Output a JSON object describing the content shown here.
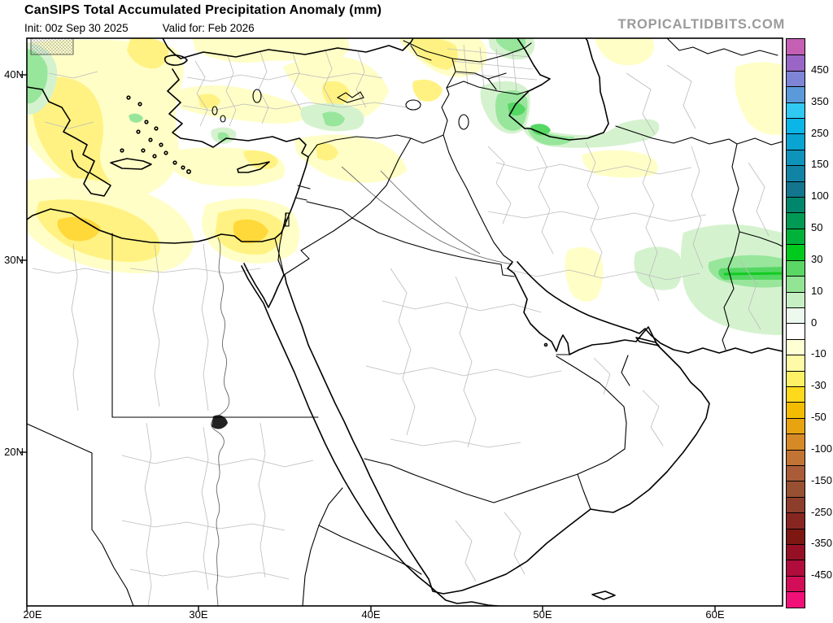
{
  "header": {
    "title": "CanSIPS Total Accumulated Precipitation Anomaly (mm)",
    "init": "Init: 00z Sep 30 2025",
    "valid": "Valid for: Feb 2026",
    "watermark": "TROPICALTIDBITS.COM"
  },
  "axes": {
    "lat": [
      "40N",
      "30N",
      "20N"
    ],
    "lon": [
      "20E",
      "30E",
      "40E",
      "50E",
      "60E"
    ]
  },
  "colorbar": {
    "unit": "mm",
    "tick_labels": [
      "450",
      "350",
      "250",
      "150",
      "100",
      "50",
      "30",
      "10",
      "0",
      "-10",
      "-30",
      "-50",
      "-100",
      "-150",
      "-250",
      "-350",
      "-450"
    ],
    "segments": [
      "#c45fb4",
      "#9a66c6",
      "#7e85d6",
      "#5a99da",
      "#30c9f2",
      "#0ab5e8",
      "#0aa4d2",
      "#0e93ba",
      "#1184a6",
      "#13768e",
      "#00876b",
      "#009a55",
      "#00b23a",
      "#00cb1d",
      "#5ad764",
      "#93e495",
      "#c6efc4",
      "#eef9ee",
      "#ffffff",
      "#ffffd4",
      "#fffaa6",
      "#fff165",
      "#ffd91c",
      "#f4bc00",
      "#e8a310",
      "#d68a26",
      "#c17434",
      "#aa5c38",
      "#985033",
      "#8d3d2c",
      "#872621",
      "#7c1712",
      "#951024",
      "#b00d3c",
      "#d30e58",
      "#f01078"
    ]
  },
  "colors": {
    "y1": "#fffec6",
    "y2": "#fff282",
    "y3": "#ffd83a",
    "g1": "#d5f2cf",
    "g2": "#97e69b",
    "g3": "#55d763",
    "g4": "#12cb21",
    "admin": "#bbbbbb",
    "river": "#666666",
    "watermark": "#9a9a9a"
  },
  "map_summary": {
    "region": "Middle East / Eastern Mediterranean / Arabian Peninsula",
    "dry_anomaly_areas": "Greece-Aegean, N and C Turkey, Caucasus, Syria-N Iraq, E Mediterranean near Cyprus, NE Libya-NW Egypt coast, N Sinai-Israel, Turkmenistan, central and S Iran patches",
    "wet_anomaly_areas": "S Caspian coast (N Iran), NW Balkans corner, NE Syria border area, S-central Turkey spot, SE Iran-Pakistan border, S-central Iran"
  }
}
